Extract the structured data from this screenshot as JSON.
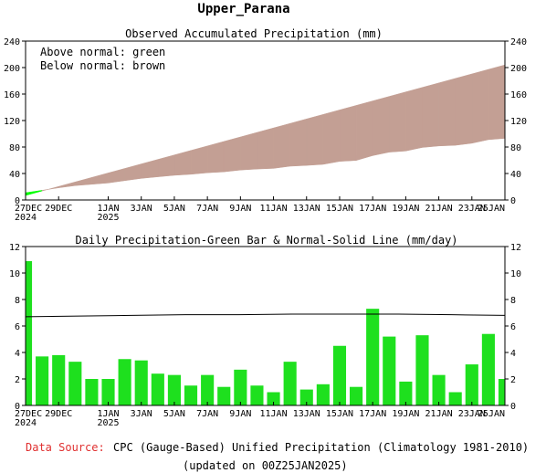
{
  "title": "Upper_Parana",
  "footer": {
    "source_label": "Data Source:",
    "source_text": "CPC (Gauge-Based) Unified Precipitation (Climatology 1981-2010)",
    "updated": "(updated on 00Z25JAN2025)"
  },
  "colors": {
    "above": "#00ff00",
    "below": "#c39f94",
    "bar": "#1ee01e",
    "line": "#000000",
    "source_label": "#e03030"
  },
  "chart_data": [
    {
      "type": "area",
      "title": "Observed Accumulated Precipitation (mm)",
      "legend": [
        "Above normal: green",
        "Below normal: brown"
      ],
      "legend_position": "top-left",
      "x_ticks": [
        {
          "day": 0,
          "label": [
            "27DEC",
            "2024"
          ]
        },
        {
          "day": 2,
          "label": [
            "29DEC"
          ]
        },
        {
          "day": 5,
          "label": [
            "1JAN",
            "2025"
          ]
        },
        {
          "day": 7,
          "label": [
            "3JAN"
          ]
        },
        {
          "day": 9,
          "label": [
            "5JAN"
          ]
        },
        {
          "day": 11,
          "label": [
            "7JAN"
          ]
        },
        {
          "day": 13,
          "label": [
            "9JAN"
          ]
        },
        {
          "day": 15,
          "label": [
            "11JAN"
          ]
        },
        {
          "day": 17,
          "label": [
            "13JAN"
          ]
        },
        {
          "day": 19,
          "label": [
            "15JAN"
          ]
        },
        {
          "day": 21,
          "label": [
            "17JAN"
          ]
        },
        {
          "day": 23,
          "label": [
            "19JAN"
          ]
        },
        {
          "day": 25,
          "label": [
            "21JAN"
          ]
        },
        {
          "day": 27,
          "label": [
            "23JAN"
          ]
        },
        {
          "day": 29,
          "label": [
            "25JAN"
          ]
        }
      ],
      "xlim": [
        0,
        29
      ],
      "ylim": [
        0,
        240
      ],
      "y_ticks": [
        0,
        40,
        80,
        120,
        160,
        200,
        240
      ],
      "observed": [
        10.9,
        14.6,
        18.4,
        21.7,
        23.7,
        25.7,
        29.2,
        32.6,
        35,
        37.3,
        38.8,
        41.1,
        42.5,
        45.2,
        46.7,
        47.7,
        51,
        52.2,
        53.8,
        58.3,
        59.7,
        67,
        72.2,
        74,
        79.3,
        81.6,
        82.6,
        85.7,
        91.1,
        93.1
      ],
      "normal": [
        6.8,
        13.6,
        20.4,
        27.2,
        34,
        40.8,
        47.6,
        54.4,
        61.2,
        68,
        74.8,
        81.6,
        88.4,
        95.2,
        102,
        108.8,
        115.6,
        122.4,
        129.2,
        136,
        142.8,
        149.6,
        156.4,
        163.2,
        170,
        176.8,
        183.6,
        190.4,
        197.2,
        204
      ]
    },
    {
      "type": "bar",
      "title": "Daily Precipitation-Green Bar & Normal-Solid Line (mm/day)",
      "xlim": [
        0,
        29
      ],
      "ylim": [
        0,
        12
      ],
      "y_ticks": [
        0,
        2,
        4,
        6,
        8,
        10,
        12
      ],
      "values": [
        10.9,
        3.7,
        3.8,
        3.3,
        2.0,
        2.0,
        3.5,
        3.4,
        2.4,
        2.3,
        1.5,
        2.3,
        1.4,
        2.7,
        1.5,
        1.0,
        3.3,
        1.2,
        1.6,
        4.5,
        1.4,
        7.3,
        5.2,
        1.8,
        5.3,
        2.3,
        1.0,
        3.1,
        5.4,
        2.0
      ],
      "normal_line": [
        6.7,
        6.75,
        6.8,
        6.85,
        6.85,
        6.9,
        6.9,
        6.9,
        6.85,
        6.8
      ]
    }
  ]
}
